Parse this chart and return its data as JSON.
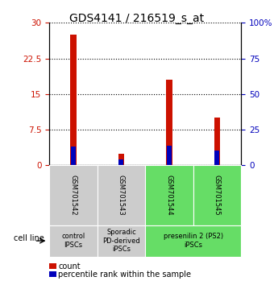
{
  "title": "GDS4141 / 216519_s_at",
  "samples": [
    "GSM701542",
    "GSM701543",
    "GSM701544",
    "GSM701545"
  ],
  "count_values": [
    27.5,
    2.5,
    18.0,
    10.0
  ],
  "percentile_values": [
    13.0,
    4.0,
    13.5,
    10.5
  ],
  "ylim_left": [
    0,
    30
  ],
  "ylim_right": [
    0,
    100
  ],
  "yticks_left": [
    0,
    7.5,
    15,
    22.5,
    30
  ],
  "ytick_labels_left": [
    "0",
    "7.5",
    "15",
    "22.5",
    "30"
  ],
  "yticks_right": [
    0,
    25,
    50,
    75,
    100
  ],
  "ytick_labels_right": [
    "0",
    "25",
    "50",
    "75",
    "100%"
  ],
  "bar_color_red": "#cc1100",
  "bar_color_blue": "#0000bb",
  "red_bar_width": 0.12,
  "blue_bar_width": 0.1,
  "group_colors": [
    "#cccccc",
    "#cccccc",
    "#66dd66",
    "#66dd66"
  ],
  "group_label_colors": [
    "#cccccc",
    "#cccccc",
    "#66dd66",
    "#66dd66"
  ],
  "group_defs": [
    {
      "i0": 0,
      "i1": 0,
      "color": "#cccccc",
      "label": "control\nIPSCs"
    },
    {
      "i0": 1,
      "i1": 1,
      "color": "#cccccc",
      "label": "Sporadic\nPD-derived\niPSCs"
    },
    {
      "i0": 2,
      "i1": 3,
      "color": "#66dd66",
      "label": "presenilin 2 (PS2)\niPSCs"
    }
  ],
  "cell_line_label": "cell line",
  "legend_red": "count",
  "legend_blue": "percentile rank within the sample",
  "tick_color_left": "#cc1100",
  "tick_color_right": "#0000bb",
  "title_fontsize": 10,
  "sample_fontsize": 6,
  "group_fontsize": 6,
  "legend_fontsize": 7
}
